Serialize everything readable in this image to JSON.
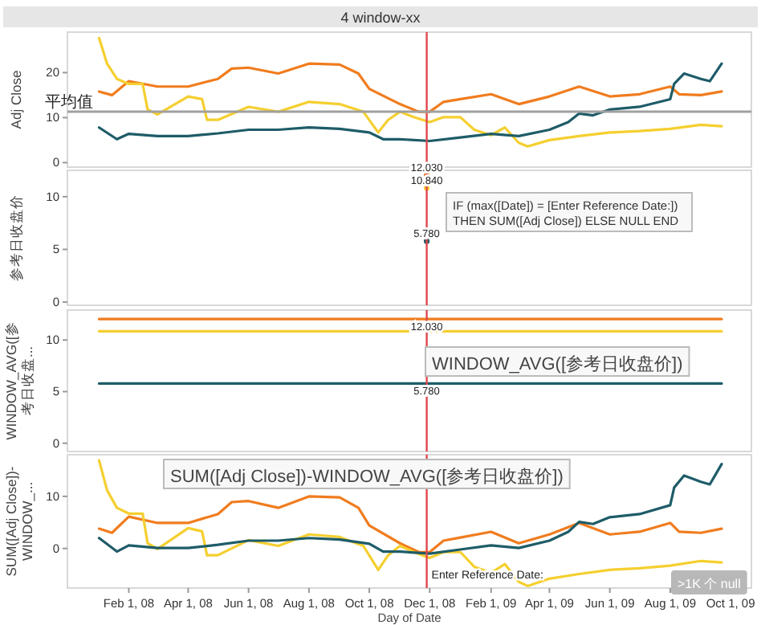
{
  "chart_data": [
    {
      "type": "line",
      "title": "4 window-xx",
      "ylabel": "Adj Close",
      "xlim": [
        "2007-12-01",
        "2009-10-22"
      ],
      "ylim": [
        -1,
        29
      ],
      "yticks": [
        0,
        10,
        20
      ],
      "tick_labels": "y",
      "ref_lines": [
        {
          "axis": "x",
          "value": "2008-11-28",
          "color": "#e0474c"
        },
        {
          "axis": "y",
          "value": 11.3,
          "label": "平均值",
          "color": "#a0a0a0"
        }
      ],
      "series": [
        {
          "color": "#f07c1e",
          "x": [
            "2008-01-02",
            "2008-01-15",
            "2008-02-01",
            "2008-03-01",
            "2008-04-01",
            "2008-05-01",
            "2008-05-15",
            "2008-06-01",
            "2008-07-01",
            "2008-08-01",
            "2008-09-01",
            "2008-09-20",
            "2008-10-01",
            "2008-11-01",
            "2008-11-20",
            "2008-12-01",
            "2008-12-15",
            "2009-01-01",
            "2009-02-01",
            "2009-03-01",
            "2009-04-01",
            "2009-05-01",
            "2009-06-01",
            "2009-07-01",
            "2009-08-01",
            "2009-08-10",
            "2009-09-01",
            "2009-09-22"
          ],
          "values": [
            15.8,
            15.0,
            18.1,
            16.9,
            16.9,
            18.6,
            20.9,
            21.1,
            19.8,
            22.0,
            21.8,
            19.8,
            16.4,
            13.0,
            11.3,
            11.3,
            13.5,
            14.1,
            15.2,
            13.0,
            14.7,
            16.9,
            14.7,
            15.2,
            16.9,
            15.2,
            15.0,
            15.8
          ]
        },
        {
          "color": "#f5cf2f",
          "x": [
            "2008-01-02",
            "2008-01-10",
            "2008-01-20",
            "2008-02-01",
            "2008-02-15",
            "2008-02-20",
            "2008-03-01",
            "2008-04-01",
            "2008-04-15",
            "2008-04-20",
            "2008-05-01",
            "2008-06-01",
            "2008-07-01",
            "2008-08-01",
            "2008-09-01",
            "2008-09-25",
            "2008-10-10",
            "2008-10-20",
            "2008-11-01",
            "2008-11-15",
            "2008-12-01",
            "2008-12-15",
            "2009-01-01",
            "2009-01-15",
            "2009-02-01",
            "2009-02-15",
            "2009-03-01",
            "2009-03-10",
            "2009-04-01",
            "2009-05-01",
            "2009-06-01",
            "2009-07-01",
            "2009-08-01",
            "2009-09-01",
            "2009-09-22"
          ],
          "values": [
            27.7,
            22.0,
            18.6,
            17.5,
            17.5,
            11.8,
            10.7,
            14.7,
            14.1,
            9.5,
            9.5,
            12.4,
            11.3,
            13.5,
            13.0,
            11.3,
            6.7,
            9.5,
            11.3,
            10.1,
            9.0,
            10.1,
            10.1,
            7.3,
            6.1,
            7.8,
            4.4,
            3.6,
            5.0,
            5.9,
            6.7,
            7.0,
            7.5,
            8.4,
            8.1
          ]
        },
        {
          "color": "#1e5c68",
          "x": [
            "2008-01-02",
            "2008-01-20",
            "2008-02-01",
            "2008-03-01",
            "2008-04-01",
            "2008-05-01",
            "2008-06-01",
            "2008-07-01",
            "2008-08-01",
            "2008-09-01",
            "2008-10-01",
            "2008-10-15",
            "2008-11-01",
            "2008-12-01",
            "2009-01-01",
            "2009-02-01",
            "2009-03-01",
            "2009-04-01",
            "2009-04-20",
            "2009-05-01",
            "2009-05-15",
            "2009-06-01",
            "2009-07-01",
            "2009-08-01",
            "2009-08-05",
            "2009-08-15",
            "2009-09-01",
            "2009-09-10",
            "2009-09-22"
          ],
          "values": [
            7.8,
            5.2,
            6.4,
            5.9,
            5.9,
            6.5,
            7.3,
            7.3,
            7.8,
            7.5,
            6.7,
            5.2,
            5.2,
            4.8,
            5.6,
            6.4,
            5.9,
            7.3,
            9.0,
            10.9,
            10.5,
            11.8,
            12.4,
            14.1,
            17.5,
            19.8,
            18.6,
            18.1,
            22.0
          ]
        }
      ]
    },
    {
      "type": "scatter",
      "ylabel": "参考日收盘价",
      "xlim": [
        "2007-12-01",
        "2009-10-22"
      ],
      "ylim": [
        -0.3,
        12.5
      ],
      "yticks": [
        0,
        5,
        10
      ],
      "tick_labels": "y",
      "marker": "circle",
      "ref_lines": [
        {
          "axis": "x",
          "value": "2008-11-28",
          "color": "#e0474c"
        }
      ],
      "annotations": [
        "IF (max([Date]) = [Enter Reference Date:])\nTHEN SUM([Adj Close])  ELSE NULL  END"
      ],
      "series": [
        {
          "color": "#f07c1e",
          "x": [
            "2008-11-28"
          ],
          "values": [
            12.03
          ],
          "value_labels": [
            "12.030"
          ]
        },
        {
          "color": "#f5cf2f",
          "x": [
            "2008-11-28"
          ],
          "values": [
            10.84
          ],
          "value_labels": [
            "10.840"
          ]
        },
        {
          "color": "#1e5c68",
          "x": [
            "2008-11-28"
          ],
          "values": [
            5.78
          ],
          "value_labels": [
            "5.780"
          ]
        }
      ]
    },
    {
      "type": "line",
      "ylabel": "WINDOW_AVG([参考日收盘...",
      "xlim": [
        "2007-12-01",
        "2009-10-22"
      ],
      "ylim": [
        -0.8,
        12.9
      ],
      "yticks": [
        0,
        5,
        10
      ],
      "tick_labels": "y",
      "ref_lines": [
        {
          "axis": "x",
          "value": "2008-11-28",
          "color": "#e0474c"
        }
      ],
      "annotations": [
        "WINDOW_AVG([参考日收盘价])"
      ],
      "series": [
        {
          "color": "#f07c1e",
          "x": [
            "2008-01-02",
            "2008-11-28",
            "2009-09-22"
          ],
          "values": [
            12.03,
            12.03,
            12.03
          ],
          "value_labels": [
            null,
            "12.030",
            null
          ]
        },
        {
          "color": "#f5cf2f",
          "x": [
            "2008-01-02",
            "2008-11-28",
            "2009-09-22"
          ],
          "values": [
            10.84,
            10.84,
            10.84
          ]
        },
        {
          "color": "#1e5c68",
          "x": [
            "2008-01-02",
            "2008-11-28",
            "2009-09-22"
          ],
          "values": [
            5.78,
            5.78,
            5.78
          ],
          "value_labels": [
            null,
            "5.780",
            null
          ]
        }
      ]
    },
    {
      "type": "line",
      "ylabel": "SUM([Adj Close])-WINDOW_...",
      "xlabel": "Day of Date",
      "xlim": [
        "2007-12-01",
        "2009-10-22"
      ],
      "ylim": [
        -7.6,
        18
      ],
      "yticks": [
        0,
        10
      ],
      "xticks": [
        {
          "value": "2008-02-01",
          "label": "Feb 1, 08"
        },
        {
          "value": "2008-04-01",
          "label": "Apr 1, 08"
        },
        {
          "value": "2008-06-01",
          "label": "Jun 1, 08"
        },
        {
          "value": "2008-08-01",
          "label": "Aug 1, 08"
        },
        {
          "value": "2008-10-01",
          "label": "Oct 1, 08"
        },
        {
          "value": "2008-12-01",
          "label": "Dec 1, 08"
        },
        {
          "value": "2009-02-01",
          "label": "Feb 1, 09"
        },
        {
          "value": "2009-04-01",
          "label": "Apr 1, 09"
        },
        {
          "value": "2009-06-01",
          "label": "Jun 1, 09"
        },
        {
          "value": "2009-08-01",
          "label": "Aug 1, 09"
        },
        {
          "value": "2009-10-01",
          "label": "Oct 1, 09"
        }
      ],
      "ref_lines": [
        {
          "axis": "x",
          "value": "2008-11-28",
          "label": "Enter Reference Date:",
          "color": "#e0474c"
        }
      ],
      "annotations": [
        "SUM([Adj Close])-WINDOW_AVG([参考日收盘价])",
        ">1K 个 null"
      ],
      "series": [
        {
          "color": "#f07c1e",
          "x": [
            "2008-01-02",
            "2008-01-15",
            "2008-02-01",
            "2008-03-01",
            "2008-04-01",
            "2008-05-01",
            "2008-05-15",
            "2008-06-01",
            "2008-07-01",
            "2008-08-01",
            "2008-09-01",
            "2008-09-20",
            "2008-10-01",
            "2008-11-01",
            "2008-11-20",
            "2008-12-01",
            "2008-12-15",
            "2009-01-01",
            "2009-02-01",
            "2009-03-01",
            "2009-04-01",
            "2009-05-01",
            "2009-06-01",
            "2009-07-01",
            "2009-08-01",
            "2009-08-10",
            "2009-09-01",
            "2009-09-22"
          ],
          "values": [
            3.8,
            3.0,
            6.1,
            4.9,
            4.9,
            6.6,
            8.9,
            9.1,
            7.8,
            10.0,
            9.8,
            7.8,
            4.4,
            1.0,
            -0.7,
            -0.7,
            1.5,
            2.1,
            3.2,
            1.0,
            2.7,
            4.9,
            2.7,
            3.2,
            4.9,
            3.2,
            3.0,
            3.8
          ]
        },
        {
          "color": "#f5cf2f",
          "x": [
            "2008-01-02",
            "2008-01-10",
            "2008-01-20",
            "2008-02-01",
            "2008-02-15",
            "2008-02-20",
            "2008-03-01",
            "2008-04-01",
            "2008-04-15",
            "2008-04-20",
            "2008-05-01",
            "2008-06-01",
            "2008-07-01",
            "2008-08-01",
            "2008-09-01",
            "2008-09-25",
            "2008-10-10",
            "2008-10-20",
            "2008-11-01",
            "2008-11-15",
            "2008-12-01",
            "2008-12-15",
            "2009-01-01",
            "2009-01-15",
            "2009-02-01",
            "2009-02-15",
            "2009-03-01",
            "2009-03-10",
            "2009-04-01",
            "2009-05-01",
            "2009-06-01",
            "2009-07-01",
            "2009-08-01",
            "2009-09-01",
            "2009-09-22"
          ],
          "values": [
            16.9,
            11.2,
            7.8,
            6.7,
            6.7,
            1.0,
            -0.1,
            3.9,
            3.3,
            -1.3,
            -1.3,
            1.6,
            0.5,
            2.7,
            2.2,
            0.5,
            -4.1,
            -1.3,
            0.5,
            -0.7,
            -1.8,
            -0.7,
            -0.7,
            -3.5,
            -4.7,
            -3.0,
            -6.4,
            -7.2,
            -5.8,
            -4.9,
            -4.1,
            -3.8,
            -3.3,
            -2.4,
            -2.7
          ]
        },
        {
          "color": "#1e5c68",
          "x": [
            "2008-01-02",
            "2008-01-20",
            "2008-02-01",
            "2008-03-01",
            "2008-04-01",
            "2008-05-01",
            "2008-06-01",
            "2008-07-01",
            "2008-08-01",
            "2008-09-01",
            "2008-10-01",
            "2008-10-15",
            "2008-11-01",
            "2008-12-01",
            "2009-01-01",
            "2009-02-01",
            "2009-03-01",
            "2009-04-01",
            "2009-04-20",
            "2009-05-01",
            "2009-05-15",
            "2009-06-01",
            "2009-07-01",
            "2009-08-01",
            "2009-08-05",
            "2009-08-15",
            "2009-09-01",
            "2009-09-10",
            "2009-09-22"
          ],
          "values": [
            2.0,
            -0.6,
            0.6,
            0.1,
            0.1,
            0.7,
            1.5,
            1.5,
            2.0,
            1.7,
            0.9,
            -0.6,
            -0.6,
            -1.0,
            -0.2,
            0.6,
            0.1,
            1.5,
            3.2,
            5.1,
            4.7,
            6.0,
            6.6,
            8.3,
            11.7,
            14.0,
            12.8,
            12.3,
            16.2
          ]
        }
      ]
    }
  ]
}
